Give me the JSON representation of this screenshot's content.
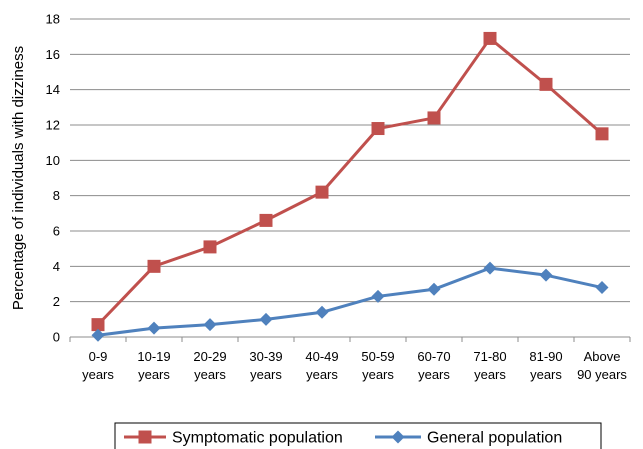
{
  "chart_data": {
    "type": "line",
    "title": "",
    "xlabel": "",
    "ylabel": "Percentage of individuals with dizziness",
    "categories": [
      [
        "0-9",
        "years"
      ],
      [
        "10-19",
        "years"
      ],
      [
        "20-29",
        "years"
      ],
      [
        "30-39",
        "years"
      ],
      [
        "40-49",
        "years"
      ],
      [
        "50-59",
        "years"
      ],
      [
        "60-70",
        "years"
      ],
      [
        "71-80",
        "years"
      ],
      [
        "81-90",
        "years"
      ],
      [
        "Above",
        "90 years"
      ]
    ],
    "ylim": [
      0,
      18
    ],
    "yticks": [
      0,
      2,
      4,
      6,
      8,
      10,
      12,
      14,
      16,
      18
    ],
    "grid": true,
    "legend": "bottom",
    "series": [
      {
        "name": "Symptomatic population",
        "color": "#c0504d",
        "marker": "square",
        "values": [
          0.7,
          4.0,
          5.1,
          6.6,
          8.2,
          11.8,
          12.4,
          16.9,
          14.3,
          11.5
        ]
      },
      {
        "name": "General population",
        "color": "#4f81bd",
        "marker": "diamond",
        "values": [
          0.1,
          0.5,
          0.7,
          1.0,
          1.4,
          2.3,
          2.7,
          3.9,
          3.5,
          2.8
        ]
      }
    ]
  }
}
